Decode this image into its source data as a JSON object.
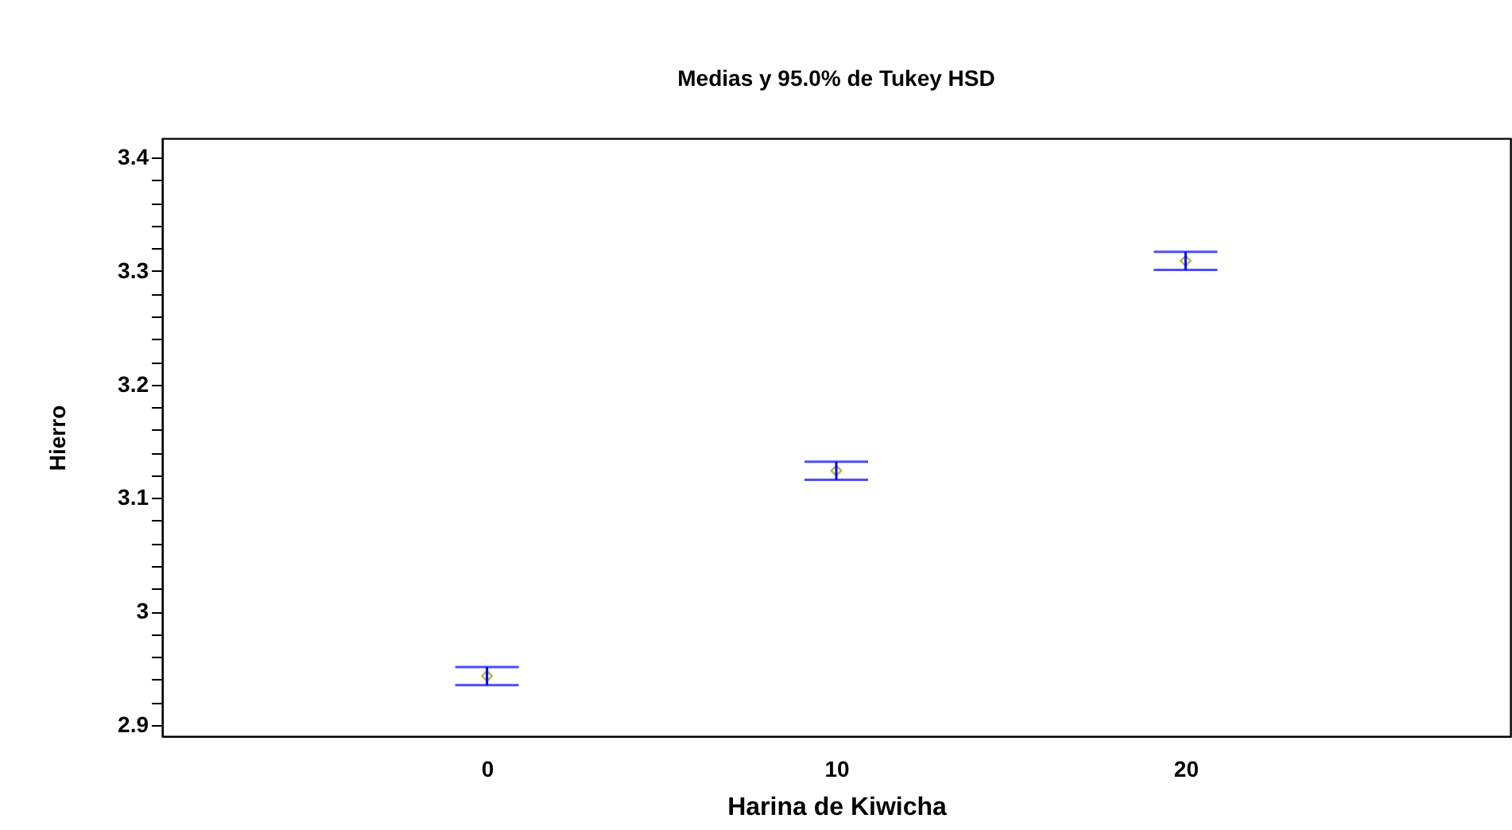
{
  "chart_data": {
    "type": "scatter",
    "title": "Medias y 95.0% de Tukey HSD",
    "xlabel": "Harina de Kiwicha",
    "ylabel": "Hierro",
    "categories": [
      "0",
      "10",
      "20"
    ],
    "series": [
      {
        "color": "#999900",
        "values": [
          2.943,
          3.124,
          3.309
        ],
        "errors": [
          [
            2.935,
            2.951
          ],
          [
            3.116,
            3.132
          ],
          [
            3.301,
            3.317
          ]
        ]
      }
    ],
    "marker": "diamond",
    "legend": false,
    "ylim": [
      2.89,
      3.417
    ],
    "yticks": [
      2.9,
      {
        "value": 2.92,
        "label": null
      },
      {
        "value": 2.94,
        "label": null
      },
      {
        "value": 2.96,
        "label": null
      },
      {
        "value": 2.98,
        "label": null
      },
      {
        "value": 3.0,
        "label": "3"
      },
      {
        "value": 3.02,
        "label": null
      },
      {
        "value": 3.04,
        "label": null
      },
      {
        "value": 3.06,
        "label": null
      },
      {
        "value": 3.08,
        "label": null
      },
      3.1,
      {
        "value": 3.12,
        "label": null
      },
      {
        "value": 3.14,
        "label": null
      },
      {
        "value": 3.16,
        "label": null
      },
      {
        "value": 3.18,
        "label": null
      },
      3.2,
      {
        "value": 3.22,
        "label": null
      },
      {
        "value": 3.24,
        "label": null
      },
      {
        "value": 3.26,
        "label": null
      },
      {
        "value": 3.28,
        "label": null
      },
      3.3,
      {
        "value": 3.32,
        "label": null
      },
      {
        "value": 3.34,
        "label": null
      },
      {
        "value": 3.36,
        "label": null
      },
      {
        "value": 3.38,
        "label": null
      },
      3.4
    ]
  }
}
